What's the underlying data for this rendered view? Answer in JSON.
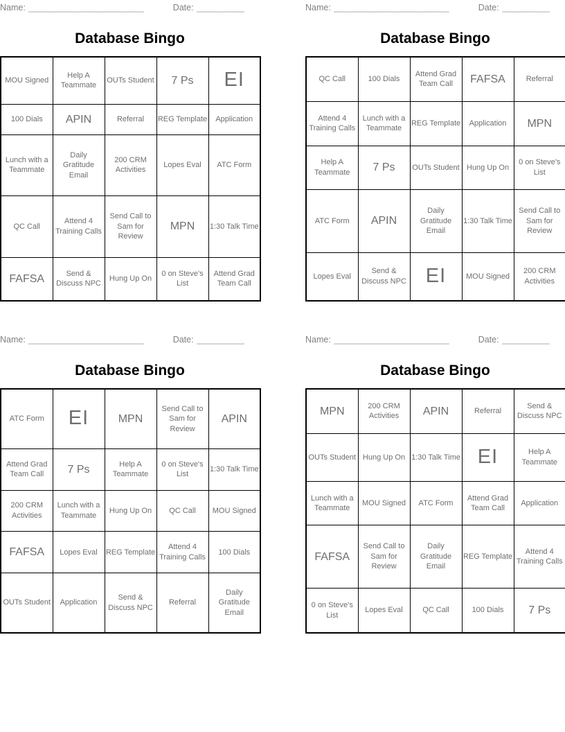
{
  "form": {
    "name_label": "Name:",
    "name_line": "________________________",
    "date_label": "Date:",
    "date_line": "__________"
  },
  "title": "Database Bingo",
  "colors": {
    "grid_border": "#000000",
    "cell_text": "#6e6e6e",
    "label_text": "#7f7f7f",
    "line_color": "#9e9e9e",
    "title_text": "#000000"
  },
  "cards": [
    {
      "position": "top-left",
      "rows": [
        [
          "MOU Signed",
          "Help A Teammate",
          "OUTs Student",
          "7 Ps",
          "EI"
        ],
        [
          "100 Dials",
          "APIN",
          "Referral",
          "REG Template",
          "Application"
        ],
        [
          "Lunch with a Teammate",
          "Daily Gratitude Email",
          "200 CRM Activities",
          "Lopes Eval",
          "ATC Form"
        ],
        [
          "QC Call",
          "Attend 4 Training Calls",
          "Send Call to Sam for Review",
          "MPN",
          "1:30 Talk Time"
        ],
        [
          "FAFSA",
          "Send & Discuss NPC",
          "Hung Up On",
          "0 on Steve's List",
          "Attend Grad Team Call"
        ]
      ]
    },
    {
      "position": "top-right",
      "rows": [
        [
          "QC Call",
          "100 Dials",
          "Attend Grad Team Call",
          "FAFSA",
          "Referral"
        ],
        [
          "Attend 4 Training Calls",
          "Lunch with a Teammate",
          "REG Template",
          "Application",
          "MPN"
        ],
        [
          "Help A Teammate",
          "7 Ps",
          "OUTs Student",
          "Hung Up On",
          "0 on Steve's List"
        ],
        [
          "ATC Form",
          "APIN",
          "Daily Gratitude Email",
          "1:30 Talk Time",
          "Send Call to Sam for Review"
        ],
        [
          "Lopes Eval",
          "Send & Discuss NPC",
          "EI",
          "MOU Signed",
          "200 CRM Activities"
        ]
      ]
    },
    {
      "position": "bottom-left",
      "rows": [
        [
          "ATC Form",
          "EI",
          "MPN",
          "Send Call to Sam for Review",
          "APIN"
        ],
        [
          "Attend Grad Team Call",
          "7 Ps",
          "Help A Teammate",
          "0 on Steve's List",
          "1:30 Talk Time"
        ],
        [
          "200 CRM Activities",
          "Lunch with a Teammate",
          "Hung Up On",
          "QC Call",
          "MOU Signed"
        ],
        [
          "FAFSA",
          "Lopes Eval",
          "REG Template",
          "Attend 4 Training Calls",
          "100 Dials"
        ],
        [
          "OUTs Student",
          "Application",
          "Send & Discuss NPC",
          "Referral",
          "Daily Gratitude Email"
        ]
      ]
    },
    {
      "position": "bottom-right",
      "rows": [
        [
          "MPN",
          "200 CRM Activities",
          "APIN",
          "Referral",
          "Send & Discuss NPC"
        ],
        [
          "OUTs Student",
          "Hung Up On",
          "1:30 Talk Time",
          "EI",
          "Help A Teammate"
        ],
        [
          "Lunch with a Teammate",
          "MOU Signed",
          "ATC Form",
          "Attend Grad Team Call",
          "Application"
        ],
        [
          "FAFSA",
          "Send Call to Sam for Review",
          "Daily Gratitude Email",
          "REG Template",
          "Attend 4 Training Calls"
        ],
        [
          "0 on Steve's List",
          "Lopes Eval",
          "QC Call",
          "100 Dials",
          "7 Ps"
        ]
      ]
    }
  ]
}
